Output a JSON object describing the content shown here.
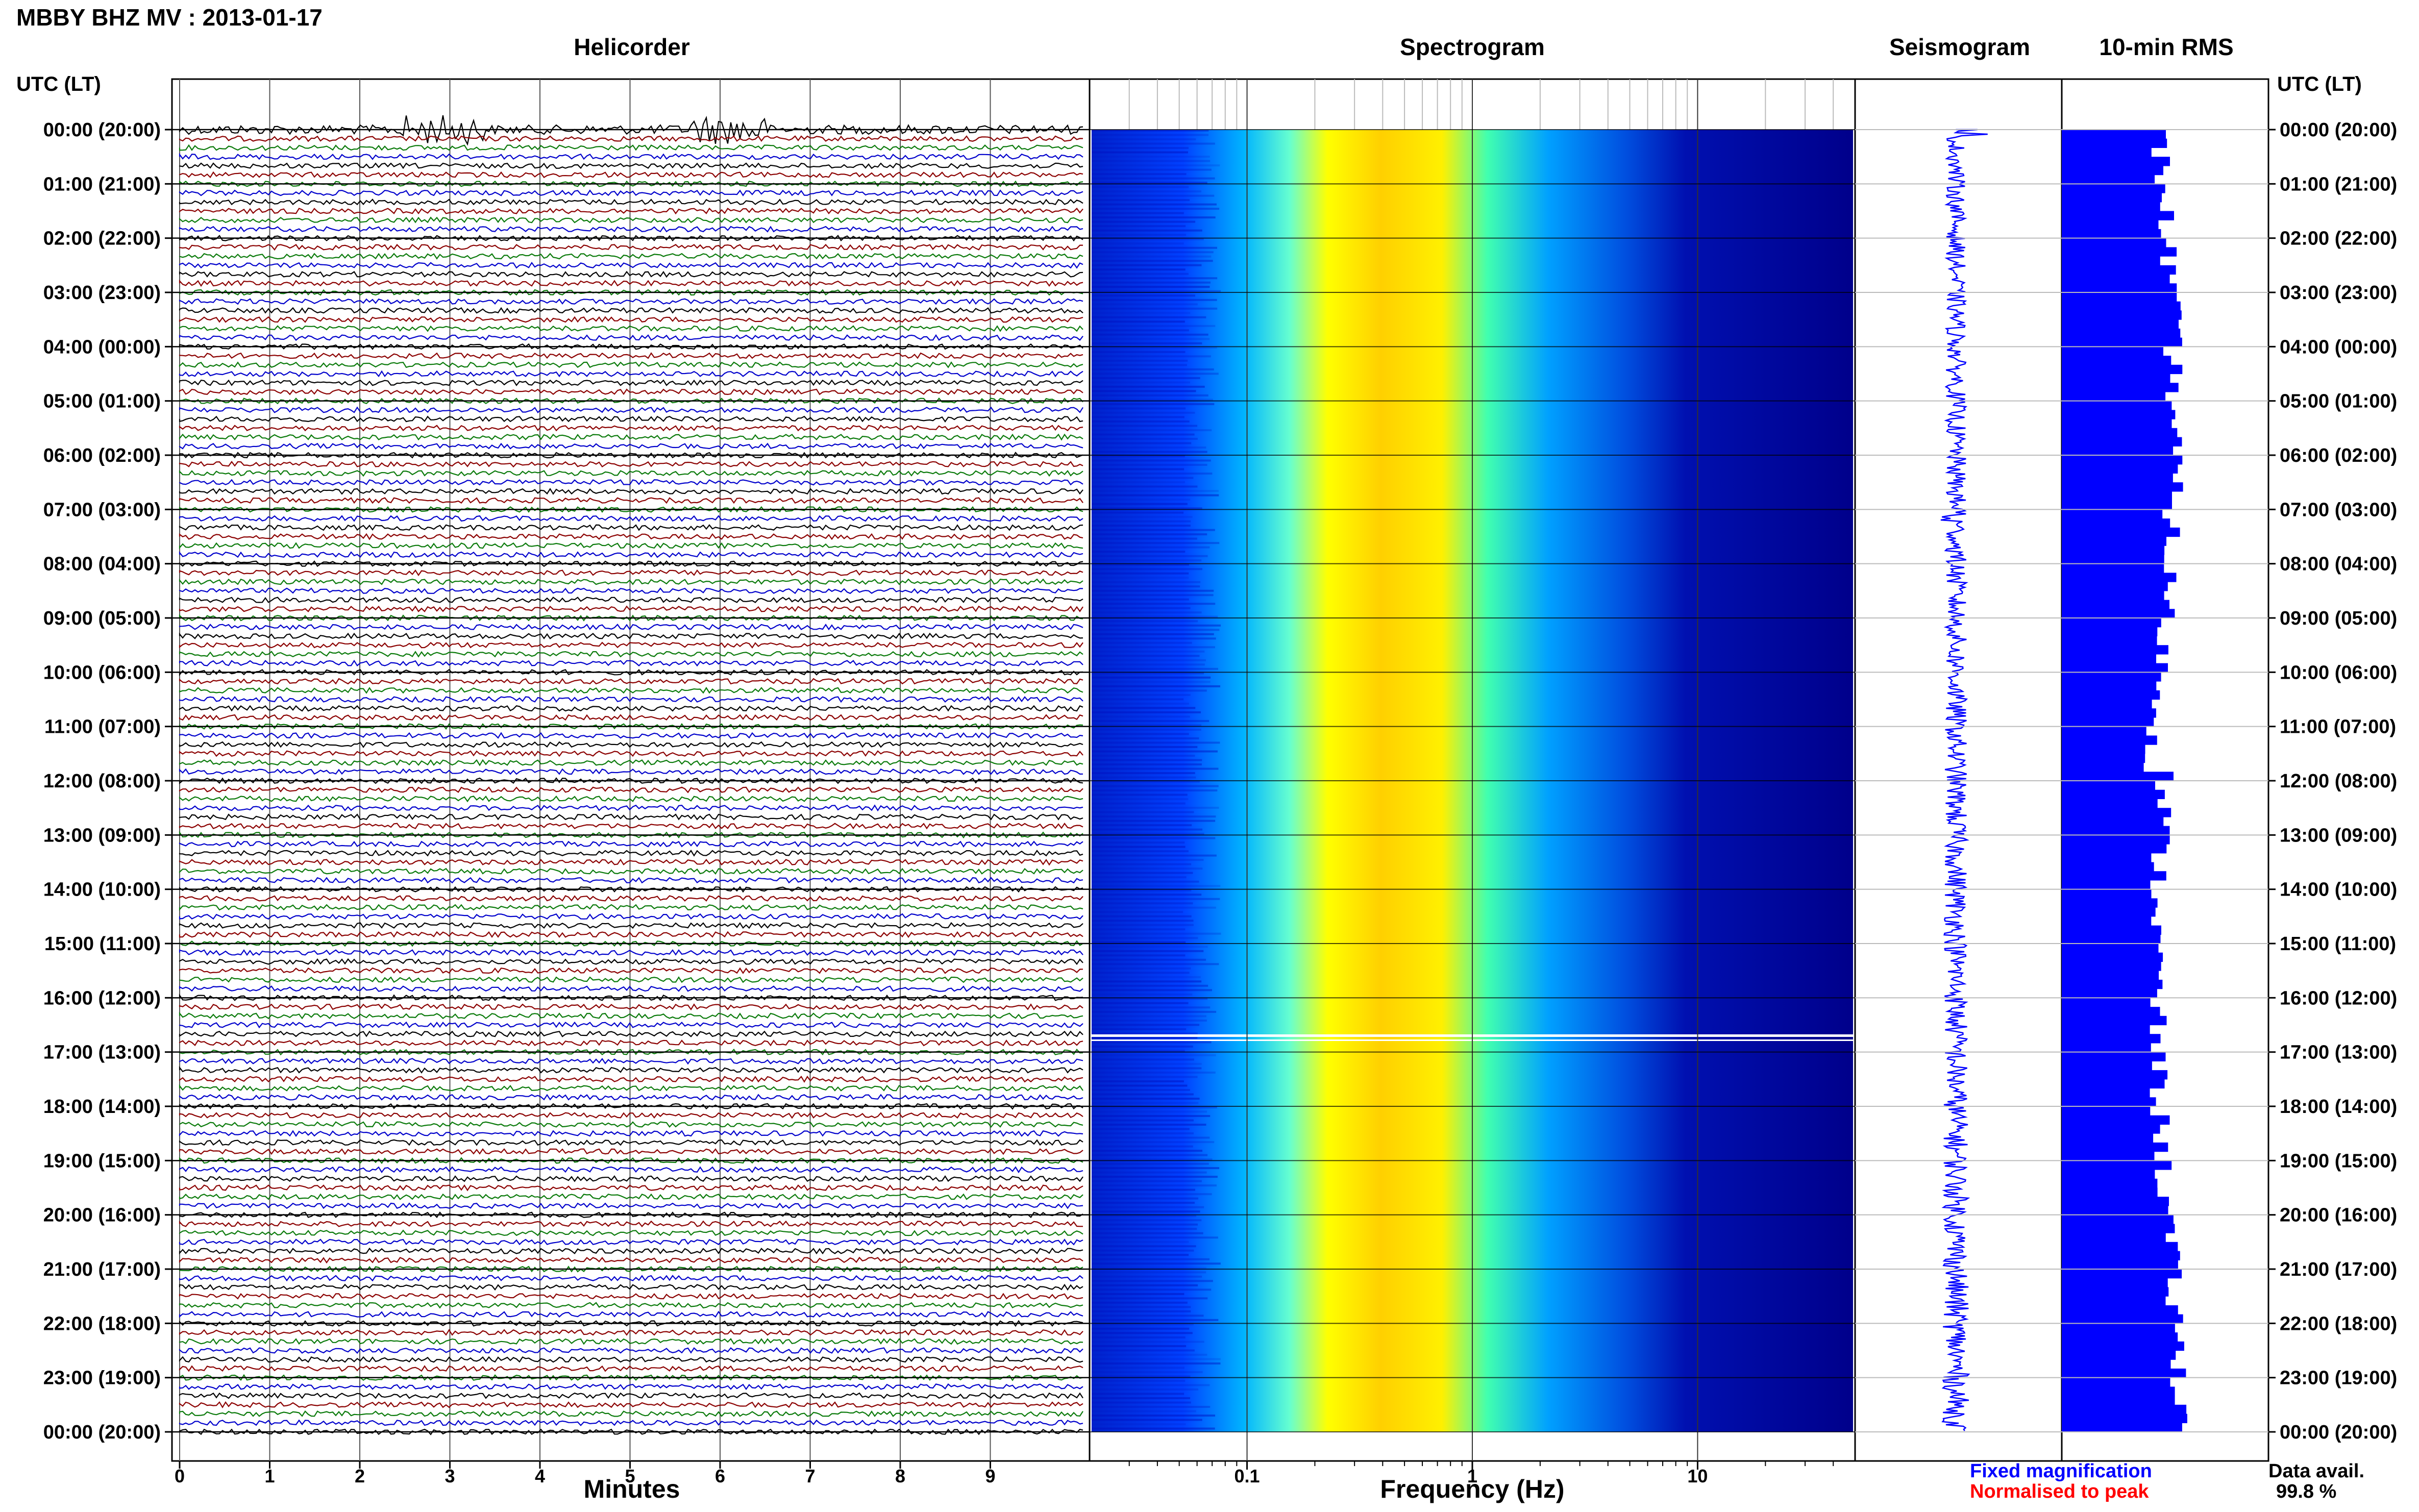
{
  "header": {
    "station_title": "MBBY BHZ MV : 2013-01-17",
    "utc_left": "UTC (LT)",
    "utc_right": "UTC (LT)"
  },
  "chart_data": [
    {
      "type": "helicorder",
      "title": "Helicorder",
      "xlabel": "Minutes",
      "x_ticks": [
        "0",
        "1",
        "2",
        "3",
        "4",
        "5",
        "6",
        "7",
        "8",
        "9"
      ],
      "xlim": [
        0,
        10
      ],
      "trace_colors": [
        "#000000",
        "#8b0000",
        "#0a7a0a",
        "#0000cc"
      ],
      "trace_color_names": [
        "black",
        "dark-red",
        "green",
        "blue"
      ],
      "traces_per_hour": 6,
      "hours_shown": 24
    },
    {
      "type": "heatmap",
      "title": "Spectrogram",
      "xlabel": "Frequency (Hz)",
      "x_scale": "log",
      "xlim": [
        0.02,
        50
      ],
      "x_ticks": [
        "0.1",
        "1",
        "10"
      ],
      "colormap": [
        "#00008b",
        "#0033ff",
        "#00bfff",
        "#ffff00",
        "#ff8c00"
      ]
    },
    {
      "type": "line",
      "title": "Seismogram",
      "color": "#0000ff"
    },
    {
      "type": "bar",
      "title": "10-min RMS",
      "color": "#0000ff",
      "orientation": "horizontal"
    }
  ],
  "time_axis": {
    "left_labels": [
      "00:00 (20:00)",
      "01:00 (21:00)",
      "02:00 (22:00)",
      "03:00 (23:00)",
      "04:00 (00:00)",
      "05:00 (01:00)",
      "06:00 (02:00)",
      "07:00 (03:00)",
      "08:00 (04:00)",
      "09:00 (05:00)",
      "10:00 (06:00)",
      "11:00 (07:00)",
      "12:00 (08:00)",
      "13:00 (09:00)",
      "14:00 (10:00)",
      "15:00 (11:00)",
      "16:00 (12:00)",
      "17:00 (13:00)",
      "18:00 (14:00)",
      "19:00 (15:00)",
      "20:00 (16:00)",
      "21:00 (17:00)",
      "22:00 (18:00)",
      "23:00 (19:00)",
      "00:00 (20:00)"
    ],
    "right_labels": [
      "00:00 (20:00)",
      "01:00 (21:00)",
      "02:00 (22:00)",
      "03:00 (23:00)",
      "04:00 (00:00)",
      "05:00 (01:00)",
      "06:00 (02:00)",
      "07:00 (03:00)",
      "08:00 (04:00)",
      "09:00 (05:00)",
      "10:00 (06:00)",
      "11:00 (07:00)",
      "12:00 (08:00)",
      "13:00 (09:00)",
      "14:00 (10:00)",
      "15:00 (11:00)",
      "16:00 (12:00)",
      "17:00 (13:00)",
      "18:00 (14:00)",
      "19:00 (15:00)",
      "20:00 (16:00)",
      "21:00 (17:00)",
      "22:00 (18:00)",
      "23:00 (19:00)",
      "00:00 (20:00)"
    ]
  },
  "footer": {
    "fixed_magnification": "Fixed magnification",
    "normalised_to_peak": "Normalised to peak",
    "fixed_color": "#0000ff",
    "normalised_color": "#ff0000",
    "data_avail_label": "Data avail.",
    "data_avail_value": "99.8 %"
  }
}
